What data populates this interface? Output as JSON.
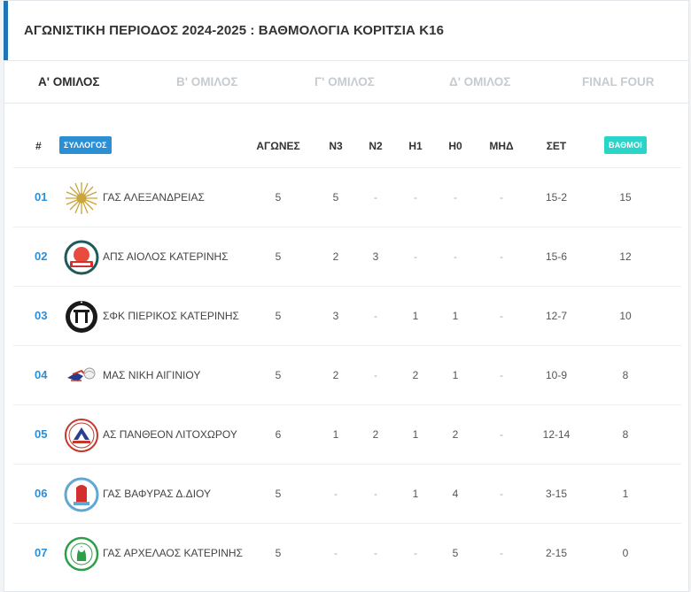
{
  "page": {
    "title": "ΑΓΩΝΙΣΤΙΚΗ ΠΕΡΙΟΔΟΣ 2024-2025 : ΒΑΘΜΟΛΟΓΙΑ ΚΟΡΙΤΣΙΑ Κ16"
  },
  "tabs": [
    {
      "label": "Α' ΟΜΙΛΟΣ",
      "active": true
    },
    {
      "label": "Β' ΟΜΙΛΟΣ",
      "active": false
    },
    {
      "label": "Γ' ΟΜΙΛΟΣ",
      "active": false
    },
    {
      "label": "Δ' ΟΜΙΛΟΣ",
      "active": false
    },
    {
      "label": "FINAL FOUR",
      "active": false
    }
  ],
  "table": {
    "headers": {
      "rank": "#",
      "club": "ΣΥΛΛΟΓΟΣ",
      "games": "ΑΓΩΝΕΣ",
      "n3": "Ν3",
      "n2": "Ν2",
      "h1": "Η1",
      "h0": "Η0",
      "mhd": "ΜΗΔ",
      "sets": "ΣΕΤ",
      "points": "ΒΑΘΜΟΙ"
    },
    "rows": [
      {
        "rank": "01",
        "team": "ΓΑΣ ΑΛΕΞΑΝΔΡΕΙΑΣ",
        "logo": "sun-logo-icon",
        "games": "5",
        "n3": "5",
        "n2": "-",
        "h1": "-",
        "h0": "-",
        "mhd": "-",
        "sets": "15-2",
        "points": "15"
      },
      {
        "rank": "02",
        "team": "ΑΠΣ ΑΙΟΛΟΣ ΚΑΤΕΡΙΝΗΣ",
        "logo": "aiolos-logo-icon",
        "games": "5",
        "n3": "2",
        "n2": "3",
        "h1": "-",
        "h0": "-",
        "mhd": "-",
        "sets": "15-6",
        "points": "12"
      },
      {
        "rank": "03",
        "team": "ΣΦΚ ΠΙΕΡΙΚΟΣ ΚΑΤΕΡΙΝΗΣ",
        "logo": "pierikos-logo-icon",
        "games": "5",
        "n3": "3",
        "n2": "-",
        "h1": "1",
        "h0": "1",
        "mhd": "-",
        "sets": "12-7",
        "points": "10"
      },
      {
        "rank": "04",
        "team": "ΜΑΣ ΝΙΚΗ ΑΙΓΙΝΙΟΥ",
        "logo": "niki-logo-icon",
        "games": "5",
        "n3": "2",
        "n2": "-",
        "h1": "2",
        "h0": "1",
        "mhd": "-",
        "sets": "10-9",
        "points": "8"
      },
      {
        "rank": "05",
        "team": "ΑΣ ΠΑΝΘΕΟΝ ΛΙΤΟΧΩΡΟΥ",
        "logo": "pantheon-logo-icon",
        "games": "6",
        "n3": "1",
        "n2": "2",
        "h1": "1",
        "h0": "2",
        "mhd": "-",
        "sets": "12-14",
        "points": "8"
      },
      {
        "rank": "06",
        "team": "ΓΑΣ ΒΑΦΥΡΑΣ Δ.ΔΙΟΥ",
        "logo": "vafyras-logo-icon",
        "games": "5",
        "n3": "-",
        "n2": "-",
        "h1": "1",
        "h0": "4",
        "mhd": "-",
        "sets": "3-15",
        "points": "1"
      },
      {
        "rank": "07",
        "team": "ΓΑΣ ΑΡΧΕΛΑΟΣ ΚΑΤΕΡΙΝΗΣ",
        "logo": "archelaos-logo-icon",
        "games": "5",
        "n3": "-",
        "n2": "-",
        "h1": "-",
        "h0": "5",
        "mhd": "-",
        "sets": "2-15",
        "points": "0"
      }
    ]
  },
  "colors": {
    "accent": "#1f74b8",
    "club_pill": "#2b8fd6",
    "points_pill": "#2ad4c8",
    "rank_text": "#2b8fd6"
  }
}
